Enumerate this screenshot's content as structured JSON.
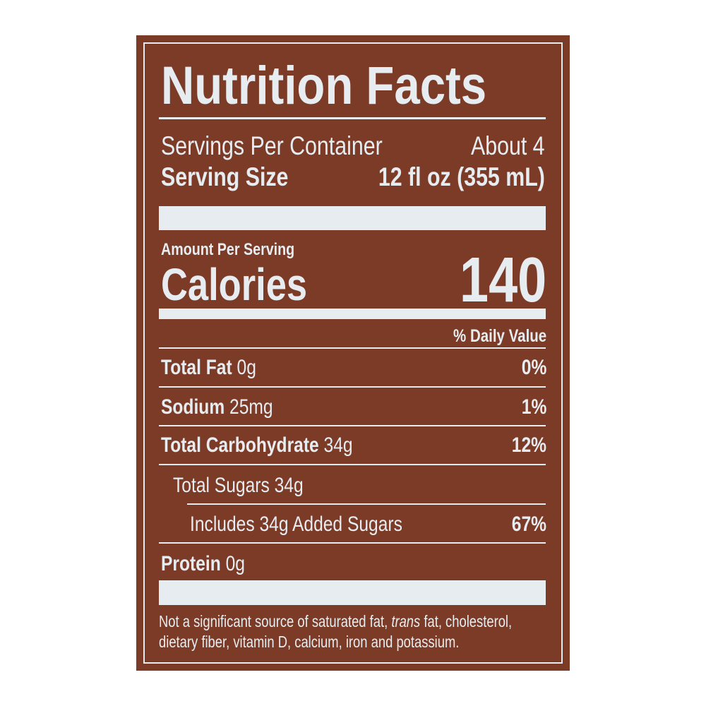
{
  "label": {
    "title": "Nutrition Facts",
    "servings_label": "Servings Per Container",
    "servings_value": "About 4",
    "serving_size_label": "Serving Size",
    "serving_size_value": "12 fl oz (355 mL)",
    "amount_per_serving": "Amount Per Serving",
    "calories_label": "Calories",
    "calories_value": "140",
    "daily_value_header": "% Daily Value",
    "nutrients": [
      {
        "name": "Total Fat",
        "amount": "0g",
        "dv": "0%"
      },
      {
        "name": "Sodium",
        "amount": "25mg",
        "dv": "1%"
      },
      {
        "name": "Total Carbohydrate",
        "amount": "34g",
        "dv": "12%"
      },
      {
        "name": "Total Sugars 34g",
        "amount": "",
        "dv": ""
      },
      {
        "name": "Includes 34g Added Sugars",
        "amount": "",
        "dv": "67%"
      },
      {
        "name": "Protein",
        "amount": "0g",
        "dv": ""
      }
    ],
    "footnote_a": "Not a significant source of saturated fat, ",
    "footnote_trans": "trans",
    "footnote_b": " fat, cholesterol, dietary fiber, vitamin D, calcium, iron and potassium.",
    "colors": {
      "background": "#7b3b27",
      "text": "#e6ecf0"
    }
  }
}
